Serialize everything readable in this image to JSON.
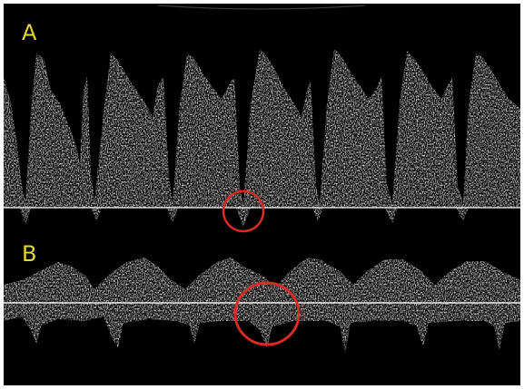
{
  "figure": {
    "panels": [
      {
        "label": "A",
        "label_color": "#e3d33c",
        "marker_color": "#d82b25"
      },
      {
        "label": "B",
        "label_color": "#e3d33c",
        "marker_color": "#d82b25"
      }
    ],
    "background": "#000000",
    "signal_color": "#ffffff"
  }
}
